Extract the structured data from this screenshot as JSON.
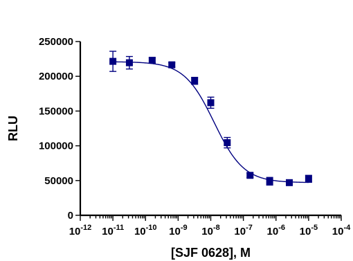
{
  "chart_data": {
    "type": "scatter",
    "xlabel": "[SJF 0628], M",
    "ylabel": "RLU",
    "x_scale": "log10",
    "xlim": [
      1e-12,
      0.0001
    ],
    "ylim": [
      0,
      250000
    ],
    "y_ticks": [
      0,
      50000,
      100000,
      150000,
      200000,
      250000
    ],
    "y_tick_labels": [
      "0",
      "50000",
      "100000",
      "150000",
      "200000",
      "250000"
    ],
    "x_tick_exponents": [
      -12,
      -11,
      -10,
      -9,
      -8,
      -7,
      -6,
      -5,
      -4
    ],
    "x_tick_base": "10",
    "marker": "square",
    "color": "#000080",
    "grid": false,
    "series": [
      {
        "x": [
          1e-11,
          3.2e-11,
          1.6e-10,
          6.4e-10,
          3.2e-09,
          1e-08,
          3.2e-08,
          1.6e-07,
          6.4e-07,
          2.56e-06,
          1e-05
        ],
        "y": [
          221500,
          219500,
          223000,
          216500,
          193500,
          162000,
          104500,
          57500,
          49000,
          47000,
          52500
        ],
        "error": [
          14500,
          9000,
          3500,
          3000,
          5000,
          8000,
          7500,
          3000,
          5500,
          2500,
          5000
        ]
      }
    ],
    "fit": {
      "model": "four-parameter logistic",
      "top": 221000,
      "bottom": 47000,
      "log_ec50": -7.9,
      "hill": -0.95
    }
  }
}
